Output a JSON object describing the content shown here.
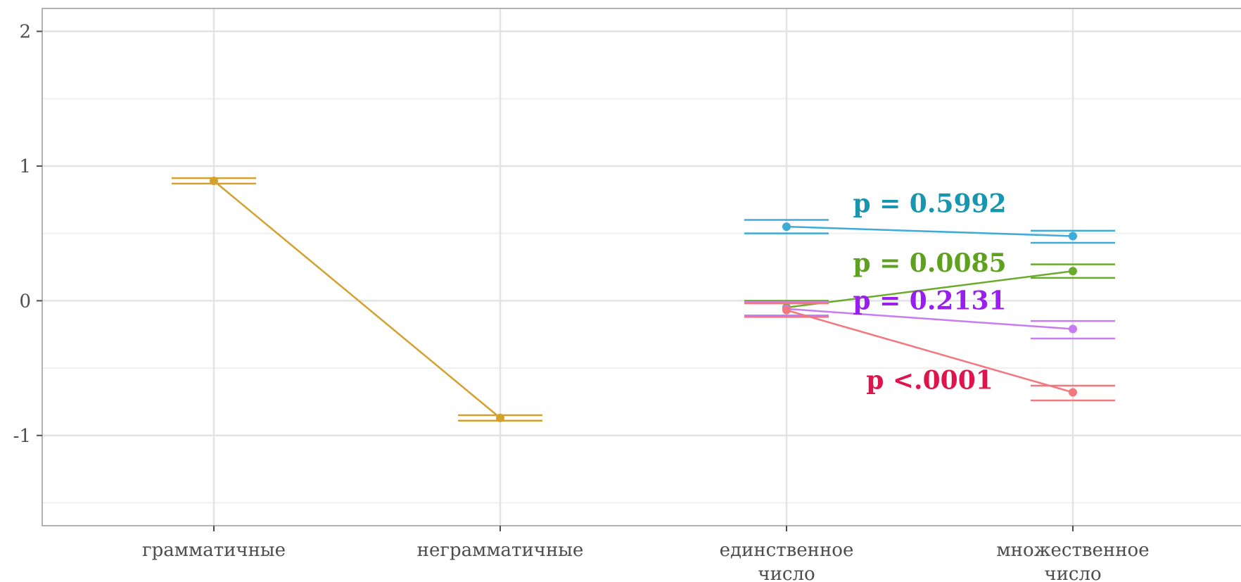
{
  "chart_data": {
    "type": "line",
    "title": "",
    "xlabel": "",
    "ylabel": "",
    "ylim": [
      -1.67,
      2.17
    ],
    "y_ticks": [
      {
        "value": 2,
        "label": "2"
      },
      {
        "value": 1,
        "label": "1"
      },
      {
        "value": 0,
        "label": "0"
      },
      {
        "value": -1,
        "label": "-1"
      }
    ],
    "y_minor_gridlines": [
      1.5,
      0.5,
      -0.5,
      -1.5
    ],
    "categories": [
      {
        "id": "gram",
        "label": "грамматичные",
        "label_lines": [
          "грамматичные"
        ]
      },
      {
        "id": "ungram",
        "label": "неграмматичные",
        "label_lines": [
          "неграмматичные"
        ]
      },
      {
        "id": "sg",
        "label": "единственное число",
        "label_lines": [
          "единственное",
          "число"
        ]
      },
      {
        "id": "pl",
        "label": "множественное число",
        "label_lines": [
          "множественное",
          "число"
        ]
      }
    ],
    "grid": true,
    "series": [
      {
        "color": "#d4a02e",
        "points": [
          {
            "category": "gram",
            "y": 0.89,
            "ymin": 0.87,
            "ymax": 0.91
          },
          {
            "category": "ungram",
            "y": -0.87,
            "ymin": -0.89,
            "ymax": -0.85
          }
        ]
      },
      {
        "color": "#3eaad8",
        "points": [
          {
            "category": "sg",
            "y": 0.55,
            "ymin": 0.5,
            "ymax": 0.6
          },
          {
            "category": "pl",
            "y": 0.48,
            "ymin": 0.43,
            "ymax": 0.52
          }
        ]
      },
      {
        "color": "#6aab2e",
        "points": [
          {
            "category": "sg",
            "y": -0.05,
            "ymin": -0.11,
            "ymax": 0.0
          },
          {
            "category": "pl",
            "y": 0.22,
            "ymin": 0.17,
            "ymax": 0.27
          }
        ]
      },
      {
        "color": "#c77cf0",
        "points": [
          {
            "category": "sg",
            "y": -0.06,
            "ymin": -0.11,
            "ymax": -0.01
          },
          {
            "category": "pl",
            "y": -0.21,
            "ymin": -0.28,
            "ymax": -0.15
          }
        ]
      },
      {
        "color": "#f2777e",
        "points": [
          {
            "category": "sg",
            "y": -0.07,
            "ymin": -0.12,
            "ymax": -0.02
          },
          {
            "category": "pl",
            "y": -0.68,
            "ymin": -0.74,
            "ymax": -0.63
          }
        ]
      }
    ],
    "annotations": [
      {
        "text": "p = 0.5992",
        "color": "#1896b0",
        "x_between": [
          "sg",
          "pl"
        ],
        "y": 0.72
      },
      {
        "text": "p = 0.0085",
        "color": "#5ea11e",
        "x_between": [
          "sg",
          "pl"
        ],
        "y": 0.28
      },
      {
        "text": "p = 0.2131",
        "color": "#9b1ef0",
        "x_between": [
          "sg",
          "pl"
        ],
        "y": 0.0
      },
      {
        "text": "p <.0001",
        "color": "#de144c",
        "x_between": [
          "sg",
          "pl"
        ],
        "y": -0.59
      }
    ]
  }
}
